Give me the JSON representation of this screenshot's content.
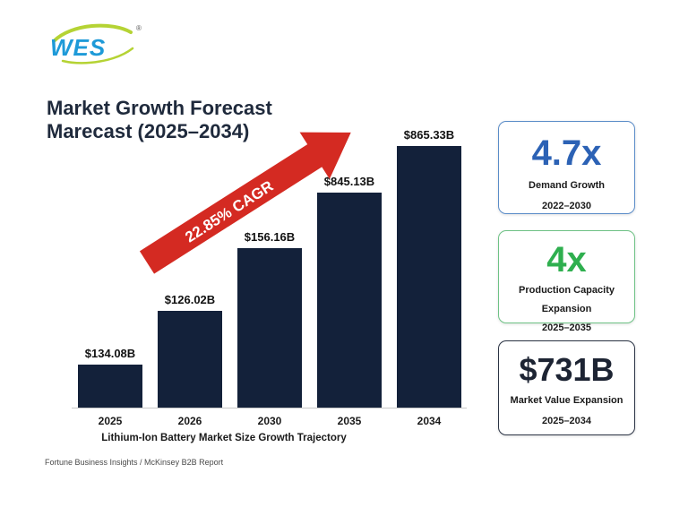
{
  "brand": {
    "logo_text": "WES",
    "registered_mark": "®"
  },
  "title": {
    "line1": "Market Growth Forecast",
    "line2": "Marecast (2025–2034)"
  },
  "chart_data": {
    "type": "bar",
    "categories": [
      "2025",
      "2026",
      "2030",
      "2035",
      "2034"
    ],
    "values": [
      134.08,
      126.02,
      156.16,
      845.13,
      865.33
    ],
    "value_labels": [
      "$134.08B",
      "$126.02B",
      "$156.16B",
      "$845.13B",
      "$865.33B"
    ],
    "xlabel": "Lithium-Ion Battery Market Size Growth Trajectory",
    "annotation": "22.85% CAGR",
    "bar_color": "#13213a",
    "arrow_color": "#d42a22"
  },
  "source": "Fortune Business Insights / McKinsey B2B Report",
  "cards": [
    {
      "value": "4.7x",
      "label": [
        "Demand Growth",
        "2022–2030"
      ],
      "color": "#2c62b5"
    },
    {
      "value": "4x",
      "label": [
        "Production Capacity",
        "Expansion",
        "2025–2035"
      ],
      "color": "#2faf4f"
    },
    {
      "value": "$731B",
      "label": [
        "Market Value Expansion",
        "2025–2034"
      ],
      "color": "#1d2433"
    }
  ]
}
